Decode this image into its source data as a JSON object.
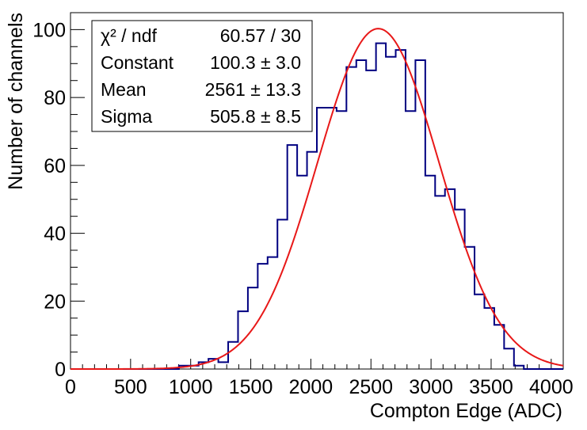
{
  "chart_data": {
    "type": "histogram",
    "xlabel": "Compton Edge (ADC)",
    "ylabel": "Number of channels",
    "xlim": [
      0,
      4100
    ],
    "ylim": [
      0,
      105
    ],
    "x_ticks": [
      "0",
      "500",
      "1000",
      "1500",
      "2000",
      "2500",
      "3000",
      "3500",
      "4000"
    ],
    "y_ticks": [
      "0",
      "20",
      "40",
      "60",
      "80",
      "100"
    ],
    "bin_width": 82,
    "bin_edges_start": 0,
    "values": [
      0,
      0,
      0,
      0,
      0,
      0,
      0,
      0,
      0,
      0,
      0,
      1,
      1,
      2,
      3,
      2,
      8,
      17,
      24,
      31,
      33,
      44,
      66,
      57,
      64,
      77,
      77,
      76,
      89,
      91,
      88,
      96,
      92,
      94,
      76,
      91,
      57,
      51,
      53,
      47,
      36,
      22,
      18,
      13,
      6,
      1,
      0,
      0,
      0,
      0
    ],
    "series": [
      {
        "name": "histogram",
        "color": "#000080"
      },
      {
        "name": "gaus fit",
        "color": "#e81818",
        "constant": 100.3,
        "mean": 2561,
        "sigma": 505.8
      }
    ],
    "stats_box": {
      "rows": [
        {
          "label": "χ² / ndf",
          "value": "60.57 / 30"
        },
        {
          "label": "Constant",
          "value": "100.3 ± 3.0"
        },
        {
          "label": "Mean",
          "value": "2561 ± 13.3"
        },
        {
          "label": "Sigma",
          "value": "505.8 ± 8.5"
        }
      ]
    },
    "grid": false,
    "legend": "top-left"
  }
}
